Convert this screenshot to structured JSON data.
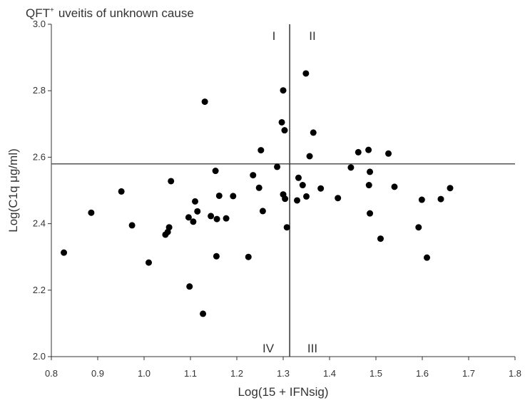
{
  "chart_data": {
    "type": "scatter",
    "title": "QFT",
    "title_superscript": "+",
    "subtitle": "uveitis of unknown cause",
    "xlabel": "Log(15 + IFNsig)",
    "ylabel": "Log(C1q μg/ml)",
    "xlim": [
      0.8,
      1.8
    ],
    "ylim": [
      2.0,
      3.0
    ],
    "xticks": [
      "0.8",
      "0.9",
      "1.0",
      "1.1",
      "1.2",
      "1.3",
      "1.4",
      "1.5",
      "1.6",
      "1.7",
      "1.8"
    ],
    "yticks": [
      "2.0",
      "2.2",
      "2.4",
      "2.6",
      "2.8",
      "3.0"
    ],
    "grid": false,
    "reference_lines": {
      "vertical_x": 1.314,
      "horizontal_y": 2.58
    },
    "quadrant_labels": {
      "q1": "I",
      "q2": "II",
      "q3": "III",
      "q4": "IV"
    },
    "points": [
      [
        0.827,
        2.313
      ],
      [
        0.886,
        2.433
      ],
      [
        0.951,
        2.497
      ],
      [
        0.974,
        2.395
      ],
      [
        1.01,
        2.283
      ],
      [
        1.046,
        2.367
      ],
      [
        1.051,
        2.375
      ],
      [
        1.054,
        2.389
      ],
      [
        1.058,
        2.528
      ],
      [
        1.096,
        2.419
      ],
      [
        1.098,
        2.211
      ],
      [
        1.106,
        2.406
      ],
      [
        1.11,
        2.467
      ],
      [
        1.115,
        2.437
      ],
      [
        1.127,
        2.129
      ],
      [
        1.131,
        2.767
      ],
      [
        1.144,
        2.423
      ],
      [
        1.154,
        2.559
      ],
      [
        1.156,
        2.302
      ],
      [
        1.157,
        2.414
      ],
      [
        1.162,
        2.484
      ],
      [
        1.177,
        2.416
      ],
      [
        1.192,
        2.483
      ],
      [
        1.225,
        2.3
      ],
      [
        1.235,
        2.546
      ],
      [
        1.248,
        2.508
      ],
      [
        1.252,
        2.621
      ],
      [
        1.256,
        2.438
      ],
      [
        1.287,
        2.571
      ],
      [
        1.297,
        2.705
      ],
      [
        1.3,
        2.801
      ],
      [
        1.3,
        2.488
      ],
      [
        1.303,
        2.681
      ],
      [
        1.304,
        2.475
      ],
      [
        1.308,
        2.389
      ],
      [
        1.33,
        2.47
      ],
      [
        1.333,
        2.538
      ],
      [
        1.342,
        2.516
      ],
      [
        1.349,
        2.852
      ],
      [
        1.35,
        2.482
      ],
      [
        1.357,
        2.603
      ],
      [
        1.365,
        2.674
      ],
      [
        1.381,
        2.506
      ],
      [
        1.418,
        2.477
      ],
      [
        1.446,
        2.569
      ],
      [
        1.462,
        2.615
      ],
      [
        1.484,
        2.622
      ],
      [
        1.485,
        2.516
      ],
      [
        1.487,
        2.556
      ],
      [
        1.487,
        2.431
      ],
      [
        1.51,
        2.355
      ],
      [
        1.527,
        2.611
      ],
      [
        1.54,
        2.511
      ],
      [
        1.592,
        2.389
      ],
      [
        1.599,
        2.472
      ],
      [
        1.61,
        2.298
      ],
      [
        1.64,
        2.474
      ],
      [
        1.66,
        2.507
      ]
    ]
  }
}
